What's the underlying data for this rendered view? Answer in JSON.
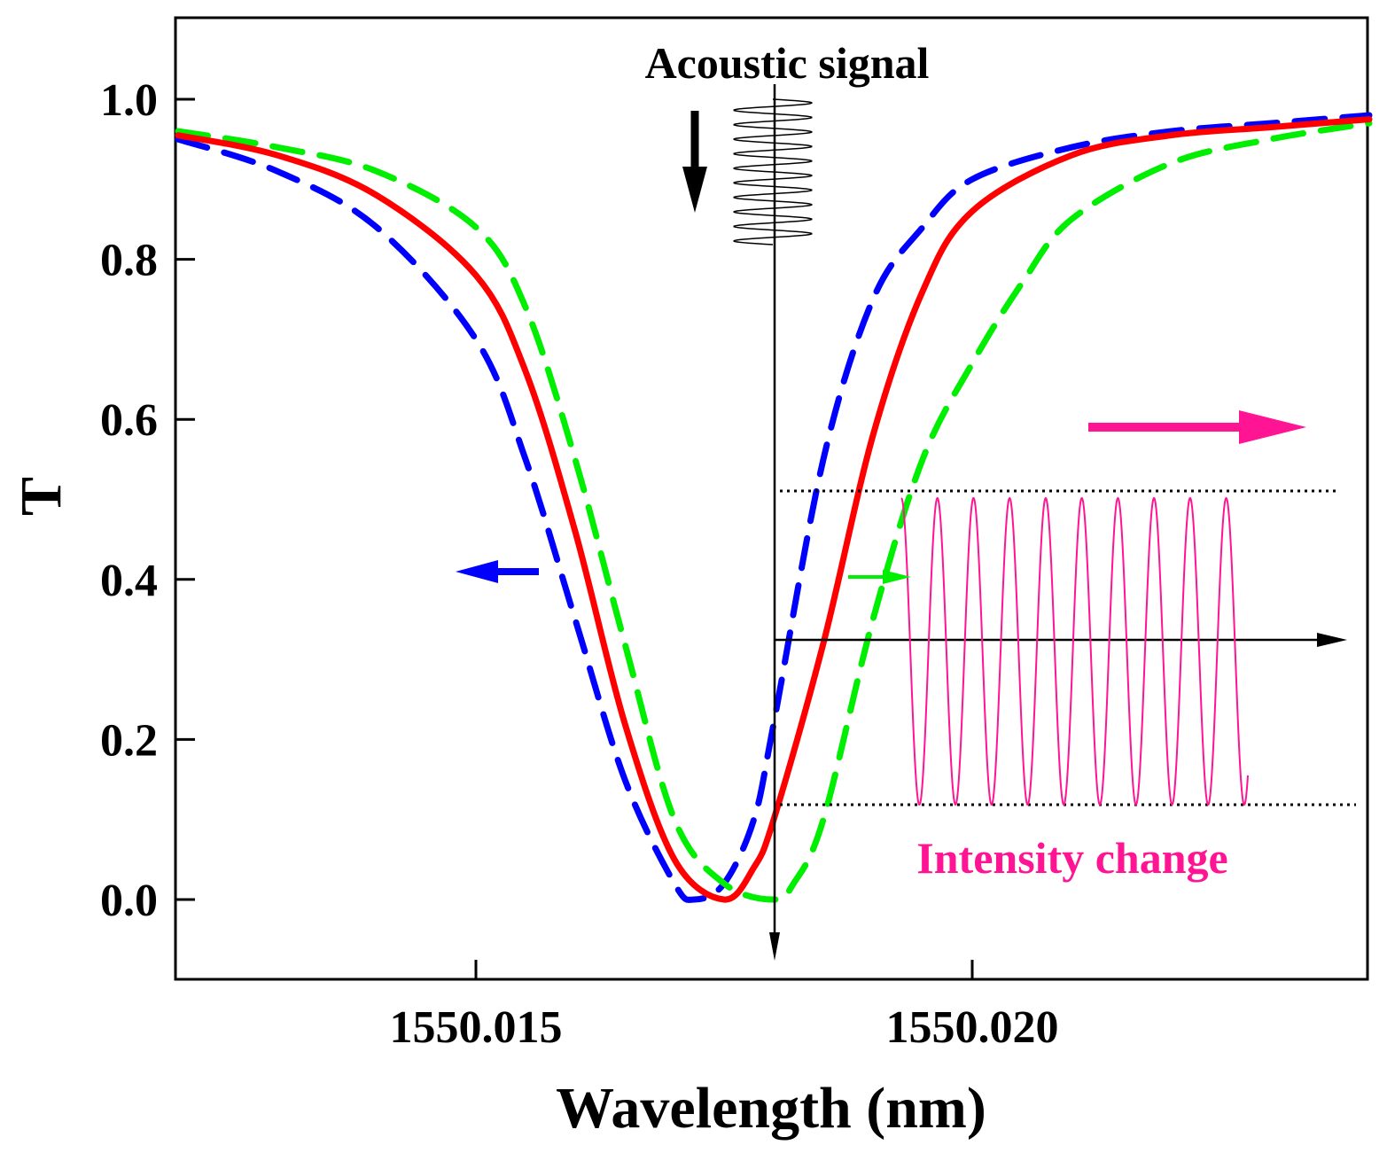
{
  "chart_data": {
    "type": "line",
    "title": "",
    "xlabel": "Wavelength (nm)",
    "ylabel": "T",
    "xlim": [
      1550.012,
      1550.024
    ],
    "ylim": [
      -0.1,
      1.1
    ],
    "x_ticks": [
      1550.015,
      1550.02
    ],
    "x_tick_labels": [
      "1550.015",
      "1550.020"
    ],
    "y_ticks": [
      0.0,
      0.2,
      0.4,
      0.6,
      0.8,
      1.0
    ],
    "y_tick_labels": [
      "0.0",
      "0.2",
      "0.4",
      "0.6",
      "0.8",
      "1.0"
    ],
    "grid": false,
    "series": [
      {
        "color": "#0000ff",
        "style": "dashed",
        "x": [
          1550.012,
          1550.013,
          1550.014,
          1550.015,
          1550.0155,
          1550.016,
          1550.0165,
          1550.017,
          1550.0172,
          1550.0175,
          1550.0178,
          1550.018,
          1550.0185,
          1550.019,
          1550.0195,
          1550.02,
          1550.021,
          1550.022,
          1550.023,
          1550.024
        ],
        "y": [
          0.95,
          0.91,
          0.84,
          0.7,
          0.55,
          0.35,
          0.15,
          0.02,
          0.0,
          0.02,
          0.1,
          0.22,
          0.55,
          0.75,
          0.84,
          0.9,
          0.94,
          0.96,
          0.97,
          0.98
        ]
      },
      {
        "color": "#ff0000",
        "style": "solid",
        "x": [
          1550.012,
          1550.013,
          1550.014,
          1550.015,
          1550.0155,
          1550.016,
          1550.0165,
          1550.017,
          1550.0175,
          1550.0178,
          1550.018,
          1550.0185,
          1550.019,
          1550.0195,
          1550.02,
          1550.021,
          1550.022,
          1550.023,
          1550.024
        ],
        "y": [
          0.955,
          0.93,
          0.88,
          0.78,
          0.66,
          0.46,
          0.22,
          0.05,
          0.0,
          0.04,
          0.1,
          0.32,
          0.58,
          0.76,
          0.86,
          0.93,
          0.955,
          0.965,
          0.975
        ]
      },
      {
        "color": "#00ee00",
        "style": "dashed",
        "x": [
          1550.012,
          1550.013,
          1550.014,
          1550.015,
          1550.0155,
          1550.016,
          1550.0165,
          1550.017,
          1550.0175,
          1550.018,
          1550.0182,
          1550.0185,
          1550.019,
          1550.0195,
          1550.02,
          1550.0205,
          1550.021,
          1550.022,
          1550.023,
          1550.024
        ],
        "y": [
          0.96,
          0.94,
          0.91,
          0.84,
          0.74,
          0.55,
          0.32,
          0.1,
          0.02,
          0.0,
          0.02,
          0.1,
          0.35,
          0.55,
          0.67,
          0.77,
          0.85,
          0.92,
          0.95,
          0.97
        ]
      }
    ],
    "annotations": {
      "acoustic_label": "Acoustic signal",
      "intensity_label": "Intensity change"
    }
  },
  "colors": {
    "blue": "#0000ff",
    "red": "#ff0000",
    "green": "#00ee00",
    "magenta": "#ff1493",
    "black": "#000000"
  }
}
